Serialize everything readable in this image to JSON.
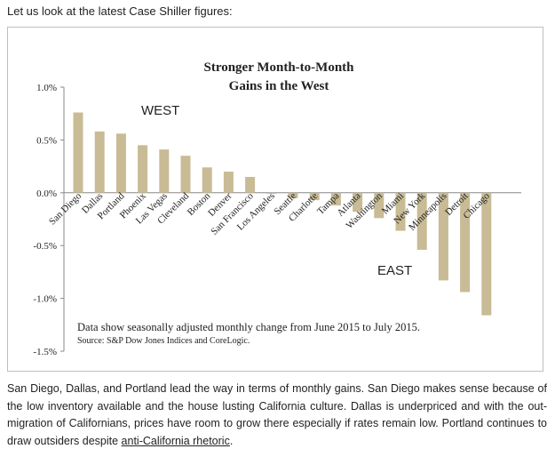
{
  "intro_text": "Let us look at the latest Case Shiller figures:",
  "colors": {
    "bar": "#c8bb95",
    "axis": "#888888"
  },
  "chart_data": {
    "type": "bar",
    "title_lines": [
      "Stronger Month-to-Month",
      "Gains in the West"
    ],
    "xlabel": "",
    "ylabel": "",
    "ylim": [
      -1.5,
      1.0
    ],
    "yticks": [
      1.0,
      0.5,
      0.0,
      -0.5,
      -1.0,
      -1.5
    ],
    "ytick_labels": [
      "1.0%",
      "0.5%",
      "0.0%",
      "-0.5%",
      "-1.0%",
      "-1.5%"
    ],
    "grid": false,
    "categories": [
      "San Diego",
      "Dallas",
      "Portland",
      "Phoenix",
      "Las Vegas",
      "Cleveland",
      "Boston",
      "Denver",
      "San Francisco",
      "Los Angeles",
      "Seattle",
      "Charlotte",
      "Tampa",
      "Atlanta",
      "Washington",
      "Miami",
      "New York",
      "Minneapolis",
      "Detroit",
      "Chicago"
    ],
    "values": [
      0.76,
      0.58,
      0.56,
      0.45,
      0.41,
      0.35,
      0.24,
      0.2,
      0.15,
      -0.01,
      -0.05,
      -0.07,
      -0.12,
      -0.18,
      -0.24,
      -0.36,
      -0.54,
      -0.83,
      -0.94,
      -1.16
    ],
    "annotations": {
      "west": "WEST",
      "east": "EAST",
      "note": "Data show seasonally adjusted monthly change from June 2015 to July 2015.",
      "source": "Source: S&P Dow Jones Indices and CoreLogic."
    }
  },
  "paragraph": {
    "text": "San Diego, Dallas, and Portland lead the way in terms of monthly gains.  San Diego makes sense because of the low inventory available and the house lusting California culture.  Dallas is underpriced and with the out-migration of Californians, prices have room to grow there especially if rates remain low.  Portland continues to draw outsiders despite ",
    "link_text": "anti-California rhetoric",
    "end": "."
  }
}
